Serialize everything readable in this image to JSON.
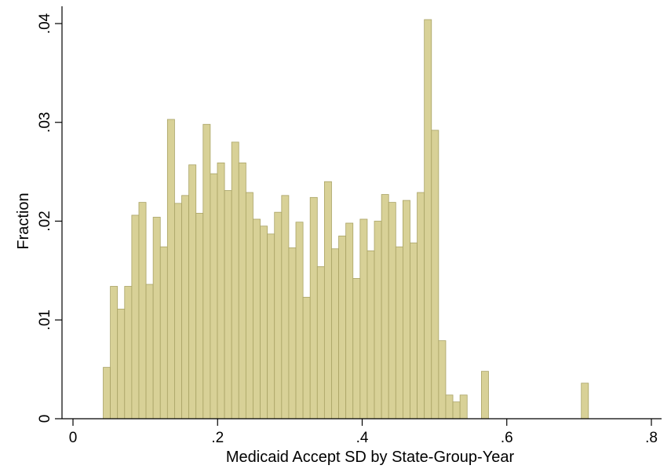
{
  "chart_data": {
    "type": "bar",
    "title": "",
    "xlabel": "Medicaid Accept SD by State-Group-Year",
    "ylabel": "Fraction",
    "xlim": [
      0,
      0.8
    ],
    "ylim": [
      0,
      0.042
    ],
    "xticks": [
      {
        "value": 0,
        "label": "0"
      },
      {
        "value": 0.2,
        "label": ".2"
      },
      {
        "value": 0.4,
        "label": ".4"
      },
      {
        "value": 0.6,
        "label": ".6"
      },
      {
        "value": 0.8,
        "label": ".8"
      }
    ],
    "yticks": [
      {
        "value": 0,
        "label": "0"
      },
      {
        "value": 0.01,
        "label": ".01"
      },
      {
        "value": 0.02,
        "label": ".02"
      },
      {
        "value": 0.03,
        "label": ".03"
      },
      {
        "value": 0.04,
        "label": ".04"
      }
    ],
    "grid": false,
    "bin_width": 0.00987,
    "bin_start": 0.0418,
    "values": [
      0.0052,
      0.0134,
      0.0111,
      0.0134,
      0.0206,
      0.0219,
      0.0136,
      0.0204,
      0.0174,
      0.0303,
      0.0218,
      0.0226,
      0.0257,
      0.0208,
      0.0298,
      0.0248,
      0.0259,
      0.0231,
      0.028,
      0.0259,
      0.0229,
      0.0202,
      0.0195,
      0.0187,
      0.0209,
      0.0226,
      0.0173,
      0.0199,
      0.0123,
      0.0224,
      0.0154,
      0.024,
      0.0172,
      0.0185,
      0.0198,
      0.0142,
      0.0202,
      0.017,
      0.02,
      0.0227,
      0.0219,
      0.0174,
      0.0221,
      0.0178,
      0.0229,
      0.0404,
      0.0292,
      0.0079,
      0.0024,
      0.0017,
      0.0024,
      0,
      0,
      0.0048,
      0,
      0,
      0,
      0,
      0,
      0,
      0,
      0,
      0,
      0,
      0,
      0,
      0,
      0.0036
    ],
    "bar_color": "#d8d197",
    "bar_edge_color": "#a9a365"
  }
}
